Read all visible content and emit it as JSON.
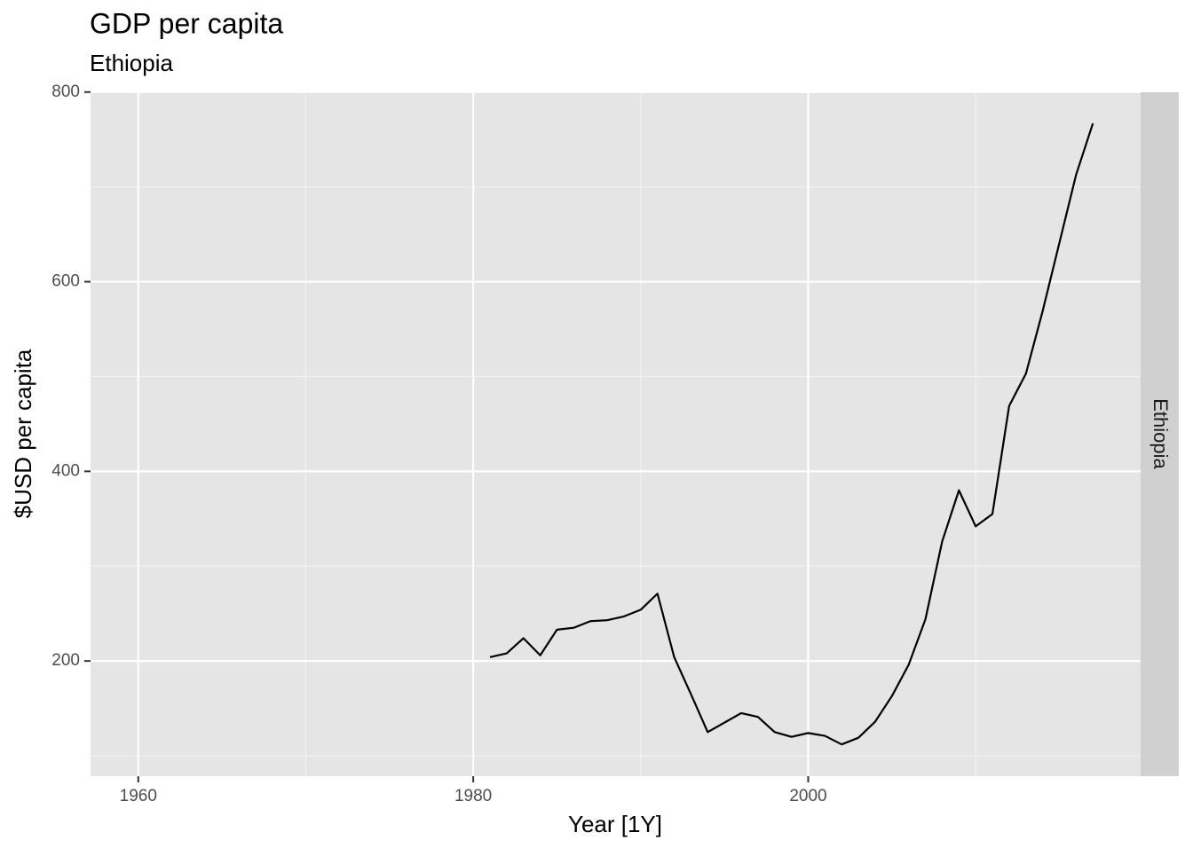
{
  "chart_data": {
    "type": "line",
    "title": "GDP per capita",
    "subtitle": "Ethiopia",
    "x_label": "Year [1Y]",
    "y_label": "$USD per capita",
    "facet": "Ethiopia",
    "x": [
      1981,
      1982,
      1983,
      1984,
      1985,
      1986,
      1987,
      1988,
      1989,
      1990,
      1991,
      1992,
      1993,
      1994,
      1995,
      1996,
      1997,
      1998,
      1999,
      2000,
      2001,
      2002,
      2003,
      2004,
      2005,
      2006,
      2007,
      2008,
      2009,
      2010,
      2011,
      2012,
      2013,
      2014,
      2015,
      2016,
      2017
    ],
    "series": [
      {
        "name": "Ethiopia",
        "color": "#000000",
        "values": [
          204,
          208,
          224,
          206,
          233,
          235,
          242,
          243,
          247,
          254,
          271,
          204,
          165,
          125,
          135,
          145,
          141,
          125,
          120,
          124,
          121,
          112,
          119,
          136,
          163,
          196,
          244,
          326,
          380,
          342,
          355,
          469,
          503,
          569,
          641,
          713,
          767
        ]
      }
    ],
    "xlim": [
      1957.15,
      2019.85
    ],
    "xticks": [
      1960,
      1980,
      2000
    ],
    "xminor_ticks": [
      1970,
      1990,
      2010
    ],
    "ylim": [
      78.5,
      799.8
    ],
    "yticks": [
      200,
      400,
      600,
      800
    ],
    "yminor_ticks": [
      100,
      300,
      500,
      700
    ],
    "grid": true
  }
}
